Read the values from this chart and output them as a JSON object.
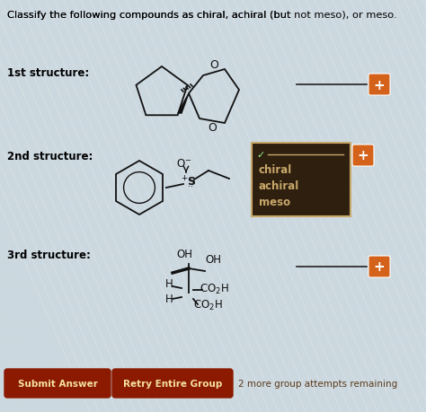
{
  "title_part1": "Classify the following compounds as chiral, achiral (but ",
  "title_part2": "not meso",
  "title_part3": "), or meso.",
  "bg_color": "#ccd8e0",
  "label_1st": "1st structure:",
  "label_2nd": "2nd structure:",
  "label_3rd": "3rd structure:",
  "dropdown_items": [
    "chiral",
    "achiral",
    "meso"
  ],
  "dropdown_bg": "#2e1f0f",
  "dropdown_text_color": "#c8a86a",
  "button1_text": "Submit Answer",
  "button2_text": "Retry Entire Group",
  "button_color": "#8b1a00",
  "button_text_color": "#f5e0a0",
  "footer_text": "2 more group attempts remaining",
  "footer_color": "#5a3a1a",
  "orange_button_color": "#d4621a",
  "line_color": "#222222",
  "structure_color": "#111111",
  "check_color": "#90EE90",
  "btn_border_color": "#c8a86a"
}
